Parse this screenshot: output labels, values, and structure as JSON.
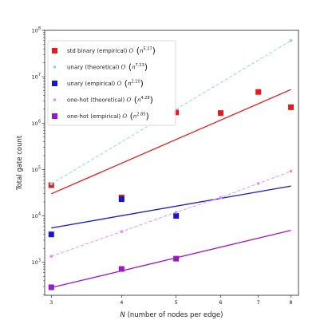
{
  "chart_data": {
    "type": "scatter",
    "xscale": "log",
    "yscale": "log",
    "xlim": [
      2.92,
      8.25
    ],
    "ylim": [
      195,
      100000000
    ],
    "xlabel": "N (number of nodes per edge)",
    "xlabel_parts": {
      "var": "N",
      "rest": " (number of nodes per edge)"
    },
    "ylabel": "Total gate count",
    "xticks": [
      3,
      4,
      5,
      6,
      7,
      8
    ],
    "xtick_labels": [
      "3",
      "4",
      "5",
      "6",
      "7",
      "8"
    ],
    "yticks": [
      1000,
      10000,
      100000,
      1000000,
      10000000,
      100000000
    ],
    "ytick_labels": [
      {
        "base": "10",
        "exp": "3"
      },
      {
        "base": "10",
        "exp": "4"
      },
      {
        "base": "10",
        "exp": "5"
      },
      {
        "base": "10",
        "exp": "6"
      },
      {
        "base": "10",
        "exp": "7"
      },
      {
        "base": "10",
        "exp": "8"
      }
    ],
    "legend_position": "upper-left",
    "series": [
      {
        "name": "std binary (empirical)",
        "complexity": {
          "prefix": "O",
          "base": "n",
          "exp": "5.27"
        },
        "color": "#e8191b",
        "marker": "square",
        "x": [
          3,
          4,
          5,
          6,
          7,
          8
        ],
        "y": [
          46000,
          25000,
          1700000,
          1650000,
          4700000,
          2200000
        ],
        "fit": {
          "x": [
            3,
            8
          ],
          "y": [
            30000,
            5300000
          ]
        }
      },
      {
        "name": "unary (theoretical)",
        "complexity": {
          "prefix": "O",
          "base": "n",
          "exp": "7.23"
        },
        "color": "#87cef0",
        "marker": "dot",
        "line": "dashed",
        "x": [
          3,
          8
        ],
        "y": [
          49000,
          60000000
        ]
      },
      {
        "name": "unary (empirical)",
        "complexity": {
          "prefix": "O",
          "base": "n",
          "exp": "2.10"
        },
        "color": "#1515d8",
        "marker": "square",
        "x": [
          3,
          4,
          5
        ],
        "y": [
          4000,
          23000,
          10000
        ],
        "fit": {
          "x": [
            3,
            8
          ],
          "y": [
            5500,
            44000
          ]
        }
      },
      {
        "name": "one-hot (theoretical)",
        "complexity": {
          "prefix": "O",
          "base": "n",
          "exp": "4.28"
        },
        "color": "#e888e8",
        "marker": "dot",
        "line": "dashed",
        "x": [
          3,
          4,
          5,
          6,
          7,
          8
        ],
        "y": [
          1350,
          4600,
          12000,
          25000,
          50000,
          92000
        ]
      },
      {
        "name": "one-hot (empirical)",
        "complexity": {
          "prefix": "O",
          "base": "n",
          "exp": "2.85"
        },
        "color": "#9a18c8",
        "marker": "square",
        "x": [
          3,
          4,
          5
        ],
        "y": [
          290,
          720,
          1200
        ],
        "fit": {
          "x": [
            3,
            8
          ],
          "y": [
            285,
            4900
          ]
        }
      }
    ]
  }
}
